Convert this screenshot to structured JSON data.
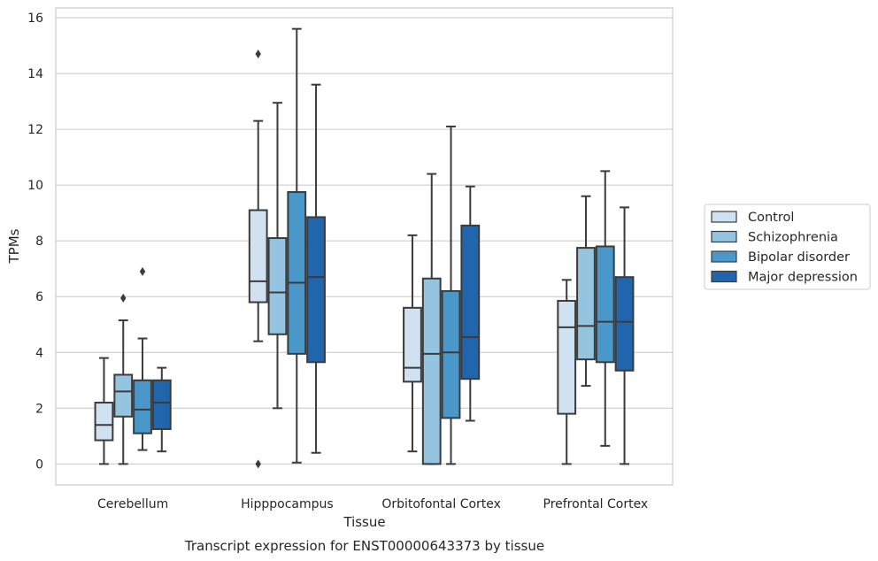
{
  "chart_data": {
    "type": "box",
    "xlabel": "Tissue",
    "ylabel": "TPMs",
    "caption": "Transcript expression for ENST00000643373 by tissue",
    "ylim": [
      -0.75,
      16.35
    ],
    "yticks": [
      0,
      2,
      4,
      6,
      8,
      10,
      12,
      14,
      16
    ],
    "grid": "horizontal",
    "legend_position": "right",
    "categories": [
      "Cerebellum",
      "Hipppocampus",
      "Orbitofontal Cortex",
      "Prefrontal Cortex"
    ],
    "series": [
      {
        "name": "Control",
        "color": "#d0e1f2",
        "boxes": [
          {
            "whisker_low": 0.0,
            "q1": 0.85,
            "median": 1.4,
            "q3": 2.2,
            "whisker_high": 3.8,
            "outliers": []
          },
          {
            "whisker_low": 4.4,
            "q1": 5.8,
            "median": 6.55,
            "q3": 9.1,
            "whisker_high": 12.3,
            "outliers": [
              14.7,
              0.0
            ]
          },
          {
            "whisker_low": 0.45,
            "q1": 2.95,
            "median": 3.45,
            "q3": 5.6,
            "whisker_high": 8.2,
            "outliers": []
          },
          {
            "whisker_low": 0.0,
            "q1": 1.8,
            "median": 4.9,
            "q3": 5.85,
            "whisker_high": 6.6,
            "outliers": []
          }
        ]
      },
      {
        "name": "Schizophrenia",
        "color": "#94c4df",
        "boxes": [
          {
            "whisker_low": 0.0,
            "q1": 1.7,
            "median": 2.6,
            "q3": 3.2,
            "whisker_high": 5.15,
            "outliers": [
              5.95
            ]
          },
          {
            "whisker_low": 2.0,
            "q1": 4.65,
            "median": 6.15,
            "q3": 8.1,
            "whisker_high": 12.95,
            "outliers": []
          },
          {
            "whisker_low": 0.0,
            "q1": 0.0,
            "median": 3.95,
            "q3": 6.65,
            "whisker_high": 10.4,
            "outliers": []
          },
          {
            "whisker_low": 2.8,
            "q1": 3.75,
            "median": 4.95,
            "q3": 7.75,
            "whisker_high": 9.6,
            "outliers": []
          }
        ]
      },
      {
        "name": "Bipolar disorder",
        "color": "#4a98c9",
        "boxes": [
          {
            "whisker_low": 0.5,
            "q1": 1.1,
            "median": 1.95,
            "q3": 3.0,
            "whisker_high": 4.5,
            "outliers": [
              6.9
            ]
          },
          {
            "whisker_low": 0.05,
            "q1": 3.95,
            "median": 6.5,
            "q3": 9.75,
            "whisker_high": 15.6,
            "outliers": []
          },
          {
            "whisker_low": 0.0,
            "q1": 1.65,
            "median": 4.0,
            "q3": 6.2,
            "whisker_high": 12.1,
            "outliers": []
          },
          {
            "whisker_low": 0.65,
            "q1": 3.65,
            "median": 5.1,
            "q3": 7.8,
            "whisker_high": 10.5,
            "outliers": []
          }
        ]
      },
      {
        "name": "Major depression",
        "color": "#2166ac",
        "boxes": [
          {
            "whisker_low": 0.45,
            "q1": 1.25,
            "median": 2.2,
            "q3": 3.0,
            "whisker_high": 3.45,
            "outliers": []
          },
          {
            "whisker_low": 0.4,
            "q1": 3.65,
            "median": 6.7,
            "q3": 8.85,
            "whisker_high": 13.6,
            "outliers": []
          },
          {
            "whisker_low": 1.55,
            "q1": 3.05,
            "median": 4.55,
            "q3": 8.55,
            "whisker_high": 9.95,
            "outliers": []
          },
          {
            "whisker_low": 0.0,
            "q1": 3.35,
            "median": 5.1,
            "q3": 6.7,
            "whisker_high": 9.2,
            "outliers": []
          }
        ]
      }
    ]
  }
}
